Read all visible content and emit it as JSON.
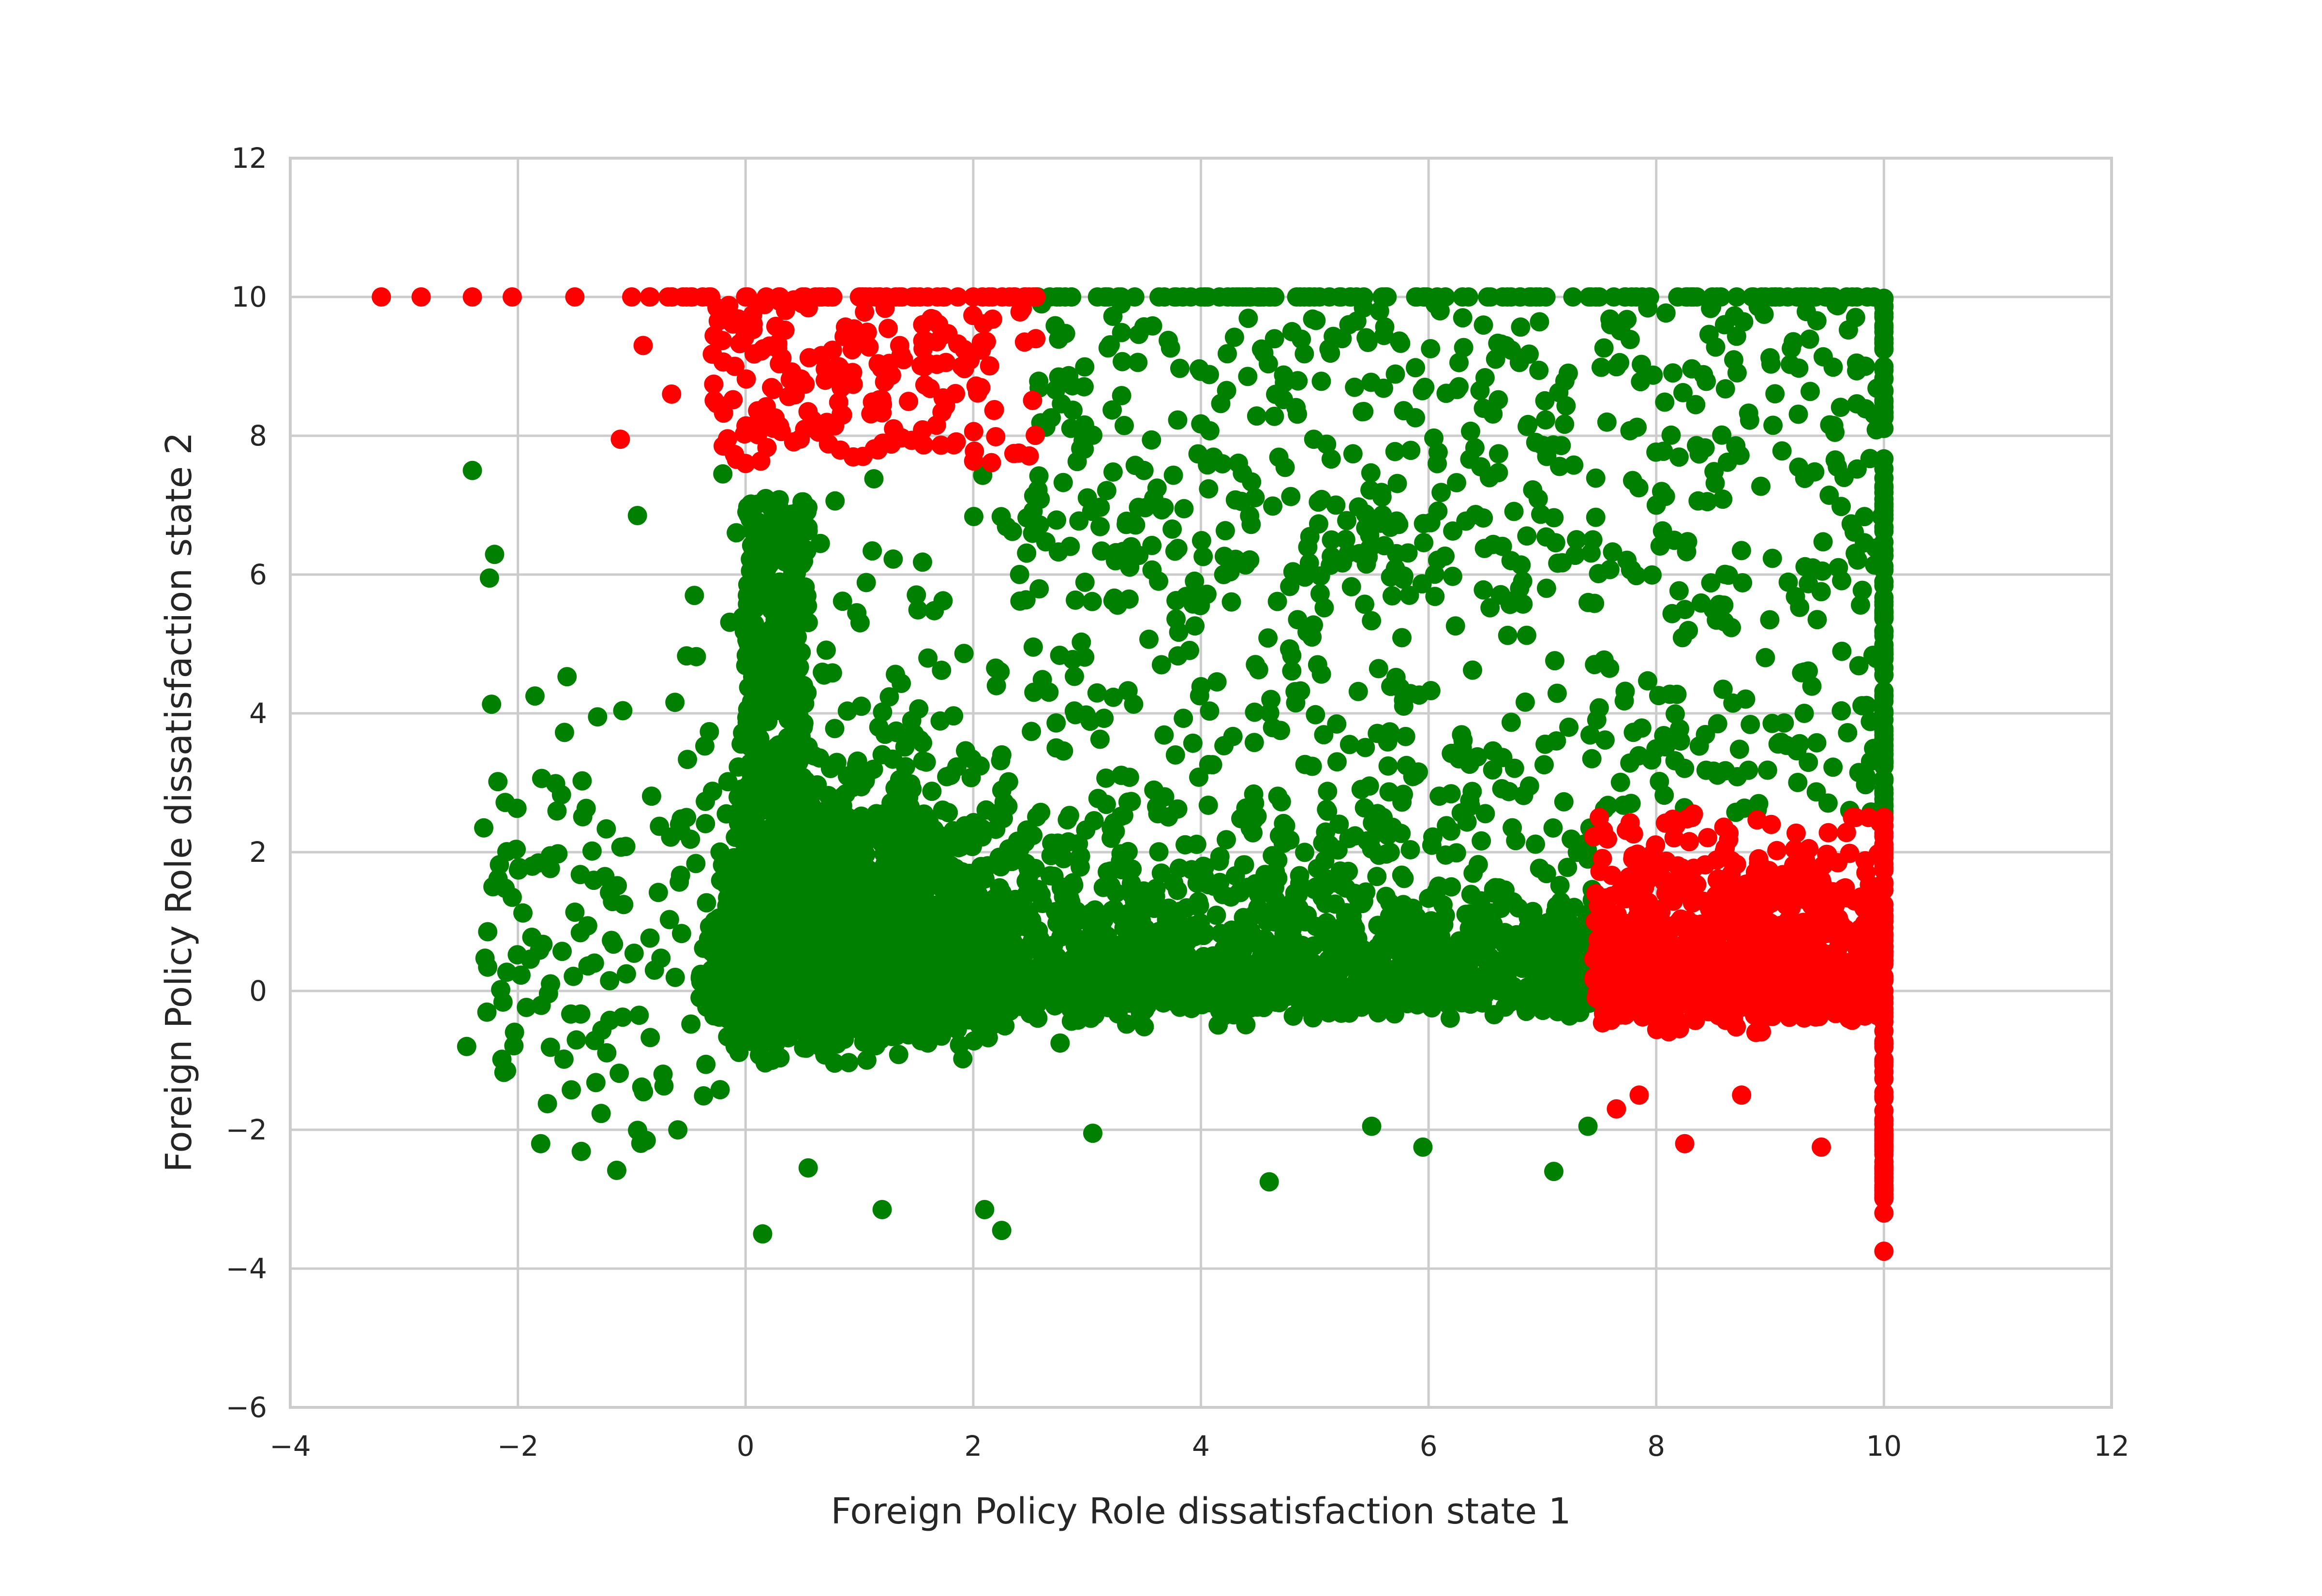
{
  "chart_data": {
    "type": "scatter",
    "title": "",
    "xlabel": "Foreign Policy Role dissatisfaction state 1",
    "ylabel": "Foreign Policy Role dissatisfaction state 2",
    "xlim": [
      -4,
      12
    ],
    "ylim": [
      -6,
      12
    ],
    "x_ticks": [
      -4,
      -2,
      0,
      2,
      4,
      6,
      8,
      10,
      12
    ],
    "y_ticks": [
      -6,
      -4,
      -2,
      0,
      2,
      4,
      6,
      8,
      10,
      12
    ],
    "x_tick_labels": [
      "−4",
      "−2",
      "0",
      "2",
      "4",
      "6",
      "8",
      "10",
      "12"
    ],
    "y_tick_labels": [
      "−6",
      "−4",
      "−2",
      "0",
      "2",
      "4",
      "6",
      "8",
      "10",
      "12"
    ],
    "grid": true,
    "legend": "none",
    "point_count_approx": 6000,
    "series": [
      {
        "color": "#008000",
        "values": [
          [
            -2.4,
            7.5
          ],
          [
            -2.25,
            5.95
          ],
          [
            -2.45,
            -0.8
          ],
          [
            -2.1,
            -1.15
          ],
          [
            -1.8,
            -2.2
          ],
          [
            -2.3,
            2.35
          ],
          [
            -2.05,
            1.35
          ],
          [
            -1.85,
            4.25
          ],
          [
            -1.3,
            3.95
          ],
          [
            -0.95,
            6.85
          ],
          [
            -0.45,
            5.7
          ],
          [
            -0.2,
            7.45
          ],
          [
            0.15,
            -3.5
          ],
          [
            0.55,
            -2.55
          ],
          [
            1.2,
            -3.15
          ],
          [
            2.1,
            -3.15
          ],
          [
            2.25,
            -3.45
          ],
          [
            3.05,
            -2.05
          ],
          [
            4.6,
            -2.75
          ],
          [
            5.5,
            -1.95
          ],
          [
            5.95,
            -2.25
          ],
          [
            7.1,
            -2.6
          ],
          [
            7.4,
            -1.95
          ],
          [
            2.6,
            9.9
          ],
          [
            3.3,
            9.9
          ],
          [
            4.8,
            9.5
          ],
          [
            5.3,
            9.6
          ],
          [
            6.3,
            9.7
          ],
          [
            7.6,
            9.6
          ],
          [
            8.6,
            9.6
          ],
          [
            9.6,
            9.9
          ],
          [
            9.65,
            7.4
          ],
          [
            9.6,
            6.1
          ],
          [
            8.0,
            7.0
          ],
          [
            6.8,
            5.8
          ],
          [
            4.2,
            6.0
          ],
          [
            3.5,
            7.5
          ],
          [
            5.6,
            2.5
          ],
          [
            6.2,
            1.5
          ],
          [
            7.2,
            0.5
          ],
          [
            7.4,
            1.9
          ],
          [
            3.1,
            0.4
          ],
          [
            1.5,
            0.9
          ],
          [
            0.8,
            2.4
          ],
          [
            0.3,
            3.2
          ],
          [
            4.5,
            1.2
          ],
          [
            8.5,
            5.5
          ],
          [
            9.3,
            4.0
          ],
          [
            8.9,
            2.7
          ],
          [
            9.7,
            2.6
          ]
        ]
      },
      {
        "color": "#ff0000",
        "values": [
          [
            -3.2,
            10.0
          ],
          [
            -2.85,
            10.0
          ],
          [
            -2.4,
            10.0
          ],
          [
            -2.05,
            10.0
          ],
          [
            -1.5,
            10.0
          ],
          [
            -1.0,
            10.0
          ],
          [
            -0.55,
            10.0
          ],
          [
            0.0,
            10.0
          ],
          [
            1.0,
            10.0
          ],
          [
            2.0,
            10.0
          ],
          [
            2.55,
            10.0
          ],
          [
            -1.1,
            7.95
          ],
          [
            -0.9,
            9.3
          ],
          [
            -0.65,
            8.6
          ],
          [
            2.45,
            9.35
          ],
          [
            2.4,
            7.75
          ],
          [
            0.0,
            7.6
          ],
          [
            1.3,
            8.1
          ],
          [
            0.7,
            8.8
          ],
          [
            1.9,
            9.0
          ],
          [
            7.5,
            2.5
          ],
          [
            7.65,
            -1.7
          ],
          [
            7.85,
            -1.5
          ],
          [
            8.25,
            -2.2
          ],
          [
            8.75,
            -1.5
          ],
          [
            9.45,
            -2.25
          ],
          [
            9.75,
            2.5
          ],
          [
            10.0,
            -3.75
          ],
          [
            10.0,
            -3.2
          ],
          [
            10.0,
            -2.8
          ],
          [
            10.0,
            -2.0
          ],
          [
            10.0,
            0.0
          ],
          [
            10.0,
            1.0
          ],
          [
            10.0,
            2.5
          ],
          [
            8.2,
            1.0
          ],
          [
            8.9,
            0.3
          ],
          [
            9.3,
            1.4
          ],
          [
            8.6,
            0.0
          ],
          [
            7.9,
            0.5
          ],
          [
            9.6,
            0.1
          ]
        ]
      }
    ]
  }
}
